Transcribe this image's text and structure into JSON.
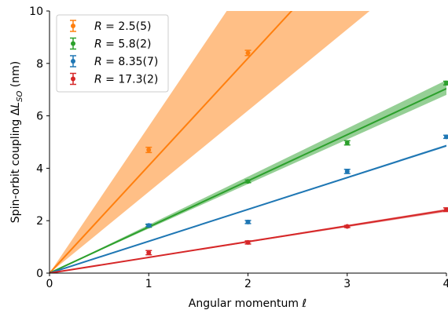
{
  "chart_data": {
    "type": "scatter",
    "xlabel": "Angular momentum ℓ",
    "ylabel": "Spin-orbit coupling ΔL_SO (nm)",
    "xlim": [
      0,
      4
    ],
    "ylim": [
      0,
      10
    ],
    "xticks": [
      "0",
      "1",
      "2",
      "3",
      "4"
    ],
    "yticks": [
      "0",
      "2",
      "4",
      "6",
      "8",
      "10"
    ],
    "grid": false,
    "legend_position": "top-left",
    "series": [
      {
        "name": "R = 2.5(5)",
        "color": "#ff7f0e",
        "points": [
          {
            "x": 1,
            "y": 4.7,
            "err": 0.1
          },
          {
            "x": 2,
            "y": 8.4,
            "err": 0.1
          }
        ],
        "fit_slope": 4.1,
        "band_slope": [
          3.1,
          5.6
        ]
      },
      {
        "name": "R = 5.8(2)",
        "color": "#2ca02c",
        "points": [
          {
            "x": 1,
            "y": 1.8,
            "err": 0.05
          },
          {
            "x": 2,
            "y": 3.5,
            "err": 0.05
          },
          {
            "x": 3,
            "y": 4.97,
            "err": 0.08
          },
          {
            "x": 4,
            "y": 7.25,
            "err": 0.07
          }
        ],
        "fit_slope": 1.76,
        "band_slope": [
          1.7,
          1.84
        ]
      },
      {
        "name": "R = 8.35(7)",
        "color": "#1f77b4",
        "points": [
          {
            "x": 1,
            "y": 1.82,
            "err": 0.05
          },
          {
            "x": 2,
            "y": 1.95,
            "err": 0.06
          },
          {
            "x": 3,
            "y": 3.88,
            "err": 0.08
          },
          {
            "x": 4,
            "y": 5.2,
            "err": 0.06
          }
        ],
        "fit_slope": 1.215,
        "band_slope": [
          1.205,
          1.225
        ]
      },
      {
        "name": "R = 17.3(2)",
        "color": "#d62728",
        "points": [
          {
            "x": 1,
            "y": 0.78,
            "err": 0.08
          },
          {
            "x": 2,
            "y": 1.17,
            "err": 0.06
          },
          {
            "x": 3,
            "y": 1.78,
            "err": 0.04
          },
          {
            "x": 4,
            "y": 2.42,
            "err": 0.07
          }
        ],
        "fit_slope": 0.6,
        "band_slope": [
          0.585,
          0.612
        ]
      }
    ],
    "legend": [
      {
        "prefix": "R",
        "value": " = 2.5(5)",
        "color": "#ff7f0e"
      },
      {
        "prefix": "R",
        "value": " = 5.8(2)",
        "color": "#2ca02c"
      },
      {
        "prefix": "R",
        "value": " = 8.35(7)",
        "color": "#1f77b4"
      },
      {
        "prefix": "R",
        "value": " = 17.3(2)",
        "color": "#d62728"
      }
    ]
  }
}
